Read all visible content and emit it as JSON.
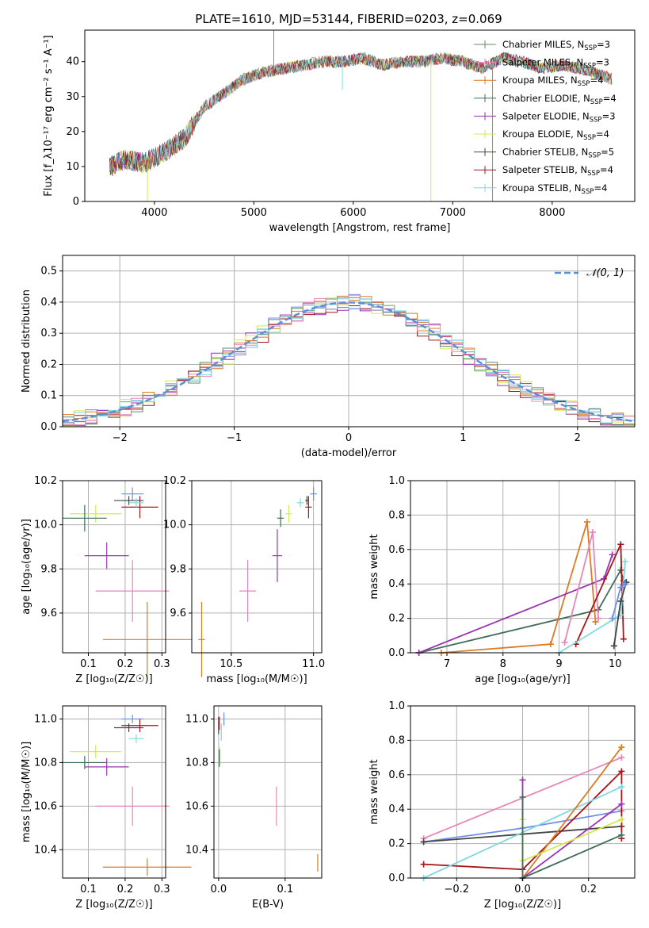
{
  "title": "PLATE=1610, MJD=53144, FIBERID=0203, z=0.069",
  "colors": {
    "chabrier_miles": "#5B8C6E",
    "salpeter_miles": "#E587B8",
    "kroupa_miles": "#DD7A24",
    "chabrier_elodie": "#3E6E5A",
    "salpeter_elodie": "#9B34B0",
    "kroupa_elodie": "#D4EA4E",
    "chabrier_stelib": "#444444",
    "salpeter_stelib": "#A4161A",
    "kroupa_stelib": "#7FD8DF",
    "histo_blue": "#6E8FE6",
    "normal_curve": "#5B8DD9",
    "grid": "#b0b0b0"
  },
  "chart_data": [
    {
      "id": "spectrum",
      "type": "line",
      "xlabel": "wavelength [Angstrom, rest frame]",
      "ylabel": "Flux [f_λ10⁻¹⁷ erg cm⁻² s⁻¹ A⁻¹]",
      "xlim": [
        3300,
        8830
      ],
      "ylim": [
        0,
        49
      ],
      "xticks": [
        4000,
        5000,
        6000,
        7000,
        8000
      ],
      "yticks": [
        0,
        10,
        20,
        30,
        40
      ],
      "grid": false,
      "legend_position": "top-right",
      "legend": [
        {
          "label": "Chabrier MILES, N_SSP=3",
          "color_key": "chabrier_miles"
        },
        {
          "label": "Salpeter MILES, N_SSP=3",
          "color_key": "salpeter_miles"
        },
        {
          "label": "Kroupa MILES, N_SSP=4",
          "color_key": "kroupa_miles"
        },
        {
          "label": "Chabrier ELODIE, N_SSP=4",
          "color_key": "chabrier_elodie"
        },
        {
          "label": "Salpeter ELODIE, N_SSP=3",
          "color_key": "salpeter_elodie"
        },
        {
          "label": "Kroupa ELODIE, N_SSP=4",
          "color_key": "kroupa_elodie"
        },
        {
          "label": "Chabrier STELIB, N_SSP=5",
          "color_key": "chabrier_stelib"
        },
        {
          "label": "Salpeter STELIB, N_SSP=4",
          "color_key": "salpeter_stelib"
        },
        {
          "label": "Kroupa STELIB, N_SSP=4",
          "color_key": "kroupa_stelib"
        }
      ],
      "continuum": [
        [
          3550,
          10
        ],
        [
          3700,
          12
        ],
        [
          3900,
          11
        ],
        [
          4100,
          14
        ],
        [
          4300,
          18
        ],
        [
          4500,
          27
        ],
        [
          4700,
          31
        ],
        [
          4900,
          35
        ],
        [
          5100,
          37
        ],
        [
          5300,
          38
        ],
        [
          5500,
          39
        ],
        [
          5700,
          40
        ],
        [
          5900,
          40
        ],
        [
          6100,
          41
        ],
        [
          6300,
          39
        ],
        [
          6500,
          40
        ],
        [
          6700,
          40
        ],
        [
          6900,
          41
        ],
        [
          7100,
          40
        ],
        [
          7300,
          38
        ],
        [
          7500,
          41
        ],
        [
          7700,
          40
        ],
        [
          7900,
          38
        ],
        [
          8100,
          39
        ],
        [
          8300,
          38
        ],
        [
          8500,
          36
        ],
        [
          8600,
          35
        ]
      ],
      "spikes": [
        {
          "x": 3930,
          "y": 0
        },
        {
          "x": 5200,
          "y": 49
        },
        {
          "x": 5890,
          "y": 32
        },
        {
          "x": 6780,
          "y": 0
        },
        {
          "x": 7400,
          "y": 0
        }
      ]
    },
    {
      "id": "residuals",
      "type": "histogram",
      "xlabel": "(data-model)/error",
      "ylabel": "Normed distribution",
      "xlim": [
        -2.5,
        2.5
      ],
      "ylim": [
        0,
        0.55
      ],
      "xticks": [
        -2,
        -1,
        0,
        1,
        2
      ],
      "yticks": [
        0.0,
        0.1,
        0.2,
        0.3,
        0.4,
        0.5
      ],
      "grid": true,
      "legend_position": "top-right",
      "legend": [
        {
          "label": "𝒩(0, 1)"
        }
      ],
      "bin_width": 0.1,
      "variants": [
        {
          "color_key": "histo_blue",
          "amp": 0.4,
          "noise": 0.05,
          "seed": 1
        },
        {
          "color_key": "salpeter_elodie",
          "amp": 0.4,
          "noise": 0.06,
          "seed": 2
        },
        {
          "color_key": "kroupa_elodie",
          "amp": 0.4,
          "noise": 0.06,
          "seed": 3
        },
        {
          "color_key": "salpeter_stelib",
          "amp": 0.39,
          "noise": 0.05,
          "seed": 4
        },
        {
          "color_key": "kroupa_miles",
          "amp": 0.4,
          "noise": 0.05,
          "seed": 5
        },
        {
          "color_key": "chabrier_miles",
          "amp": 0.4,
          "noise": 0.05,
          "seed": 6
        },
        {
          "color_key": "salpeter_miles",
          "amp": 0.4,
          "noise": 0.05,
          "seed": 7
        },
        {
          "color_key": "kroupa_stelib",
          "amp": 0.4,
          "noise": 0.05,
          "seed": 8
        }
      ]
    },
    {
      "id": "age_vs_z",
      "type": "errorbar",
      "xlabel": "Z [log₁₀(Z/Z☉)]",
      "ylabel": "age  [log₁₀(age/yr)]",
      "xlim": [
        0.03,
        0.31
      ],
      "ylim": [
        9.42,
        10.2
      ],
      "xticks": [
        0.1,
        0.2,
        0.3
      ],
      "yticks": [
        9.6,
        9.8,
        10.0,
        10.2
      ],
      "grid": true,
      "points": [
        {
          "color_key": "histo_blue",
          "x": 0.22,
          "y": 10.14,
          "xerr": 0.03,
          "yerr": 0.03
        },
        {
          "color_key": "chabrier_stelib",
          "x": 0.21,
          "y": 10.11,
          "xerr": 0.04,
          "yerr": 0.02
        },
        {
          "color_key": "salpeter_stelib",
          "x": 0.24,
          "y": 10.08,
          "xerr": 0.05,
          "yerr": 0.05
        },
        {
          "color_key": "kroupa_stelib",
          "x": 0.23,
          "y": 10.1,
          "xerr": 0.02,
          "yerr": 0.02
        },
        {
          "color_key": "kroupa_elodie",
          "x": 0.12,
          "y": 10.05,
          "xerr": 0.07,
          "yerr": 0.04
        },
        {
          "color_key": "chabrier_elodie",
          "x": 0.09,
          "y": 10.03,
          "xerr": 0.06,
          "yerr": 0.06
        },
        {
          "color_key": "salpeter_elodie",
          "x": 0.15,
          "y": 9.86,
          "xerr": 0.06,
          "yerr": 0.06
        },
        {
          "color_key": "salpeter_miles",
          "x": 0.22,
          "y": 9.7,
          "xerr": 0.1,
          "yerr": 0.14
        },
        {
          "color_key": "kroupa_miles",
          "x": 0.26,
          "y": 9.48,
          "xerr": 0.12,
          "yerr": 0.17
        }
      ]
    },
    {
      "id": "age_vs_mass",
      "type": "errorbar",
      "xlabel": "mass [log₁₀(M/M☉)]",
      "ylabel": "",
      "xlim": [
        10.26,
        11.05
      ],
      "ylim": [
        9.42,
        10.2
      ],
      "xticks": [
        10.5,
        11.0
      ],
      "yticks": [
        9.6,
        9.8,
        10.0,
        10.2
      ],
      "grid": true,
      "points": [
        {
          "color_key": "histo_blue",
          "x": 11.0,
          "y": 10.14,
          "xerr": 0.02,
          "yerr": 0.03
        },
        {
          "color_key": "chabrier_stelib",
          "x": 10.96,
          "y": 10.11,
          "xerr": 0.01,
          "yerr": 0.02
        },
        {
          "color_key": "salpeter_stelib",
          "x": 10.97,
          "y": 10.08,
          "xerr": 0.02,
          "yerr": 0.05
        },
        {
          "color_key": "kroupa_stelib",
          "x": 10.92,
          "y": 10.1,
          "xerr": 0.02,
          "yerr": 0.02
        },
        {
          "color_key": "kroupa_elodie",
          "x": 10.85,
          "y": 10.05,
          "xerr": 0.02,
          "yerr": 0.04
        },
        {
          "color_key": "chabrier_elodie",
          "x": 10.8,
          "y": 10.03,
          "xerr": 0.02,
          "yerr": 0.04
        },
        {
          "color_key": "salpeter_elodie",
          "x": 10.78,
          "y": 9.86,
          "xerr": 0.03,
          "yerr": 0.12
        },
        {
          "color_key": "salpeter_miles",
          "x": 10.6,
          "y": 9.7,
          "xerr": 0.05,
          "yerr": 0.14
        },
        {
          "color_key": "kroupa_miles",
          "x": 10.32,
          "y": 9.48,
          "xerr": 0.02,
          "yerr": 0.17
        }
      ]
    },
    {
      "id": "massweight_vs_age",
      "type": "line",
      "xlabel": "age  [log₁₀(age/yr)]",
      "ylabel": "mass weight",
      "xlim": [
        6.35,
        10.35
      ],
      "ylim": [
        0,
        1
      ],
      "xticks": [
        7,
        8,
        9,
        10
      ],
      "yticks": [
        0.0,
        0.2,
        0.4,
        0.6,
        0.8,
        1.0
      ],
      "grid": true,
      "series": [
        {
          "color_key": "chabrier_elodie",
          "points": [
            [
              6.5,
              0
            ],
            [
              9.7,
              0.25
            ],
            [
              10.1,
              0.48
            ],
            [
              10.15,
              0.42
            ]
          ]
        },
        {
          "color_key": "kroupa_miles",
          "points": [
            [
              6.9,
              0
            ],
            [
              8.85,
              0.05
            ],
            [
              9.5,
              0.76
            ],
            [
              9.65,
              0.18
            ]
          ]
        },
        {
          "color_key": "salpeter_elodie",
          "points": [
            [
              6.5,
              0
            ],
            [
              9.8,
              0.43
            ],
            [
              9.95,
              0.57
            ]
          ]
        },
        {
          "color_key": "salpeter_miles",
          "points": [
            [
              9.1,
              0.06
            ],
            [
              9.6,
              0.7
            ],
            [
              9.7,
              0.2
            ]
          ]
        },
        {
          "color_key": "salpeter_stelib",
          "points": [
            [
              9.3,
              0.05
            ],
            [
              10.1,
              0.63
            ],
            [
              10.15,
              0.08
            ]
          ]
        },
        {
          "color_key": "kroupa_stelib",
          "points": [
            [
              9.0,
              0
            ],
            [
              10.1,
              0.22
            ],
            [
              10.18,
              0.53
            ]
          ]
        },
        {
          "color_key": "chabrier_stelib",
          "points": [
            [
              9.98,
              0.04
            ],
            [
              10.1,
              0.3
            ],
            [
              10.2,
              0.41
            ]
          ]
        },
        {
          "color_key": "histo_blue",
          "points": [
            [
              9.95,
              0.2
            ],
            [
              10.1,
              0.38
            ],
            [
              10.18,
              0.4
            ]
          ]
        }
      ]
    },
    {
      "id": "mass_vs_z",
      "type": "errorbar",
      "xlabel": "Z [log₁₀(Z/Z☉)]",
      "ylabel": "mass [log₁₀(M/M☉)]",
      "xlim": [
        0.03,
        0.31
      ],
      "ylim": [
        10.27,
        11.06
      ],
      "xticks": [
        0.1,
        0.2,
        0.3
      ],
      "yticks": [
        10.4,
        10.6,
        10.8,
        11.0
      ],
      "grid": true,
      "points": [
        {
          "color_key": "histo_blue",
          "x": 0.22,
          "y": 11.0,
          "xerr": 0.03,
          "yerr": 0.02
        },
        {
          "color_key": "chabrier_stelib",
          "x": 0.21,
          "y": 10.96,
          "xerr": 0.04,
          "yerr": 0.02
        },
        {
          "color_key": "salpeter_stelib",
          "x": 0.24,
          "y": 10.97,
          "xerr": 0.05,
          "yerr": 0.03
        },
        {
          "color_key": "kroupa_stelib",
          "x": 0.23,
          "y": 10.91,
          "xerr": 0.02,
          "yerr": 0.02
        },
        {
          "color_key": "kroupa_elodie",
          "x": 0.12,
          "y": 10.85,
          "xerr": 0.07,
          "yerr": 0.03
        },
        {
          "color_key": "chabrier_elodie",
          "x": 0.09,
          "y": 10.8,
          "xerr": 0.06,
          "yerr": 0.03
        },
        {
          "color_key": "salpeter_elodie",
          "x": 0.15,
          "y": 10.78,
          "xerr": 0.06,
          "yerr": 0.04
        },
        {
          "color_key": "salpeter_miles",
          "x": 0.22,
          "y": 10.6,
          "xerr": 0.1,
          "yerr": 0.09
        },
        {
          "color_key": "kroupa_miles",
          "x": 0.26,
          "y": 10.32,
          "xerr": 0.12,
          "yerr": 0.04
        }
      ]
    },
    {
      "id": "mass_vs_ebv",
      "type": "errorbar",
      "xlabel": "E(B-V)",
      "ylabel": "",
      "xlim": [
        -0.007,
        0.155
      ],
      "ylim": [
        10.27,
        11.06
      ],
      "xticks": [
        0.0,
        0.1
      ],
      "yticks": [
        10.4,
        10.6,
        10.8,
        11.0
      ],
      "grid": true,
      "points": [
        {
          "color_key": "histo_blue",
          "x": 0.008,
          "y": 11.0,
          "xerr": 0,
          "yerr": 0.03
        },
        {
          "color_key": "chabrier_stelib",
          "x": 0.0,
          "y": 10.97,
          "xerr": 0,
          "yerr": 0.04
        },
        {
          "color_key": "salpeter_stelib",
          "x": 0.001,
          "y": 10.98,
          "xerr": 0,
          "yerr": 0.03
        },
        {
          "color_key": "kroupa_stelib",
          "x": 0.004,
          "y": 10.94,
          "xerr": 0,
          "yerr": 0.04
        },
        {
          "color_key": "kroupa_elodie",
          "x": 0.002,
          "y": 10.83,
          "xerr": 0,
          "yerr": 0.04
        },
        {
          "color_key": "chabrier_elodie",
          "x": 0.001,
          "y": 10.82,
          "xerr": 0,
          "yerr": 0.04
        },
        {
          "color_key": "salpeter_miles",
          "x": 0.087,
          "y": 10.6,
          "xerr": 0,
          "yerr": 0.09
        },
        {
          "color_key": "kroupa_miles",
          "x": 0.149,
          "y": 10.34,
          "xerr": 0,
          "yerr": 0.04
        }
      ]
    },
    {
      "id": "massweight_vs_z",
      "type": "line",
      "xlabel": "Z [log₁₀(Z/Z☉)]",
      "ylabel": "mass weight",
      "xlim": [
        -0.34,
        0.34
      ],
      "ylim": [
        0,
        1
      ],
      "xticks": [
        -0.2,
        0.0,
        0.2
      ],
      "yticks": [
        0.0,
        0.2,
        0.4,
        0.6,
        0.8,
        1.0
      ],
      "grid": true,
      "series": [
        {
          "color_key": "salpeter_miles",
          "points": [
            [
              -0.3,
              0.23
            ],
            [
              0.3,
              0.7
            ]
          ]
        },
        {
          "color_key": "histo_blue",
          "points": [
            [
              -0.3,
              0.21
            ],
            [
              0.0,
              0.29
            ],
            [
              0.3,
              0.39
            ]
          ]
        },
        {
          "color_key": "chabrier_stelib",
          "points": [
            [
              -0.3,
              0.21
            ],
            [
              0.3,
              0.3
            ]
          ]
        },
        {
          "color_key": "salpeter_stelib",
          "points": [
            [
              -0.3,
              0.08
            ],
            [
              0.0,
              0.05
            ],
            [
              0.3,
              0.62
            ],
            [
              0.3,
              0.23
            ]
          ]
        },
        {
          "color_key": "kroupa_stelib",
          "points": [
            [
              -0.3,
              0.0
            ],
            [
              0.3,
              0.53
            ]
          ]
        },
        {
          "color_key": "kroupa_miles",
          "points": [
            [
              0.0,
              0.0
            ],
            [
              0.3,
              0.76
            ]
          ]
        },
        {
          "color_key": "salpeter_elodie",
          "points": [
            [
              0.0,
              0.57
            ],
            [
              0.0,
              0.0
            ],
            [
              0.3,
              0.43
            ]
          ]
        },
        {
          "color_key": "kroupa_elodie",
          "points": [
            [
              0.0,
              0.34
            ],
            [
              0.0,
              0.1
            ],
            [
              0.3,
              0.34
            ]
          ]
        },
        {
          "color_key": "chabrier_elodie",
          "points": [
            [
              0.0,
              0.47
            ],
            [
              0.0,
              0.0
            ],
            [
              0.3,
              0.25
            ]
          ]
        }
      ]
    }
  ]
}
